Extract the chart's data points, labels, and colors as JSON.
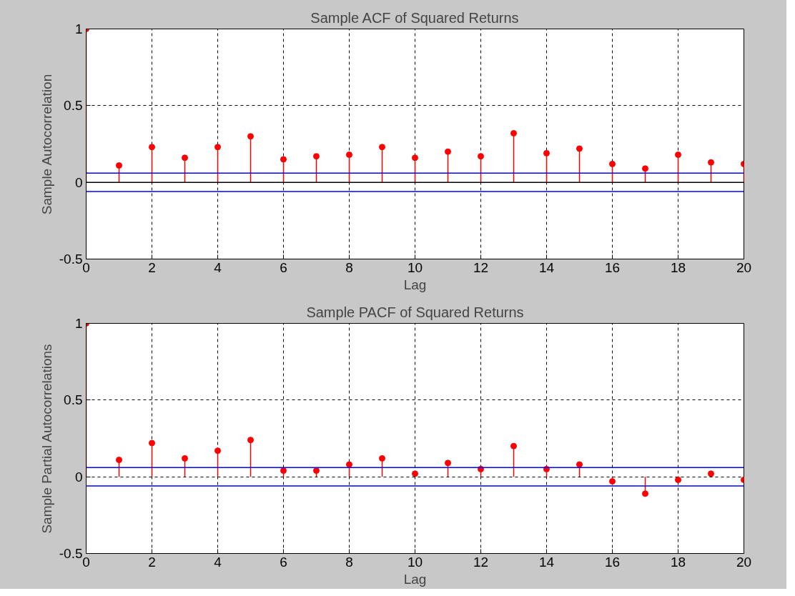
{
  "chart_data": [
    {
      "type": "lollipop",
      "title": "Sample ACF of Squared Returns",
      "xlabel": "Lag",
      "ylabel": "Sample Autocorrelation",
      "x": [
        0,
        1,
        2,
        3,
        4,
        5,
        6,
        7,
        8,
        9,
        10,
        11,
        12,
        13,
        14,
        15,
        16,
        17,
        18,
        19,
        20
      ],
      "series": [
        {
          "color": "#ff0000",
          "values": [
            1,
            0.11,
            0.23,
            0.16,
            0.23,
            0.3,
            0.15,
            0.17,
            0.18,
            0.23,
            0.16,
            0.2,
            0.17,
            0.32,
            0.19,
            0.22,
            0.12,
            0.09,
            0.18,
            0.13,
            0.12
          ]
        }
      ],
      "xlim": [
        0,
        20
      ],
      "ylim": [
        -0.5,
        1
      ],
      "xticks": [
        0,
        2,
        4,
        6,
        8,
        10,
        12,
        14,
        16,
        18,
        20
      ],
      "yticks": [
        -0.5,
        0,
        0.5,
        1
      ],
      "grid": true,
      "marker": "circle",
      "ref_lines": [
        {
          "axis": "y",
          "value": 0.06,
          "color": "#0000ff"
        },
        {
          "axis": "y",
          "value": -0.06,
          "color": "#0000ff"
        },
        {
          "axis": "y",
          "value": 0,
          "color": "#000000"
        }
      ]
    },
    {
      "type": "lollipop",
      "title": "Sample PACF of Squared Returns",
      "xlabel": "Lag",
      "ylabel": "Sample Partial Autocorrelations",
      "x": [
        0,
        1,
        2,
        3,
        4,
        5,
        6,
        7,
        8,
        9,
        10,
        11,
        12,
        13,
        14,
        15,
        16,
        17,
        18,
        19,
        20
      ],
      "series": [
        {
          "color": "#ff0000",
          "values": [
            1,
            0.11,
            0.22,
            0.12,
            0.17,
            0.24,
            0.04,
            0.04,
            0.08,
            0.12,
            0.02,
            0.09,
            0.05,
            0.2,
            0.05,
            0.08,
            -0.03,
            -0.11,
            -0.02,
            0.02,
            -0.02
          ]
        }
      ],
      "xlim": [
        0,
        20
      ],
      "ylim": [
        -0.5,
        1
      ],
      "xticks": [
        0,
        2,
        4,
        6,
        8,
        10,
        12,
        14,
        16,
        18,
        20
      ],
      "yticks": [
        -0.5,
        0,
        0.5,
        1
      ],
      "grid": true,
      "marker": "circle",
      "ref_lines": [
        {
          "axis": "y",
          "value": 0.06,
          "color": "#0000ff"
        },
        {
          "axis": "y",
          "value": -0.06,
          "color": "#0000ff"
        }
      ]
    }
  ]
}
